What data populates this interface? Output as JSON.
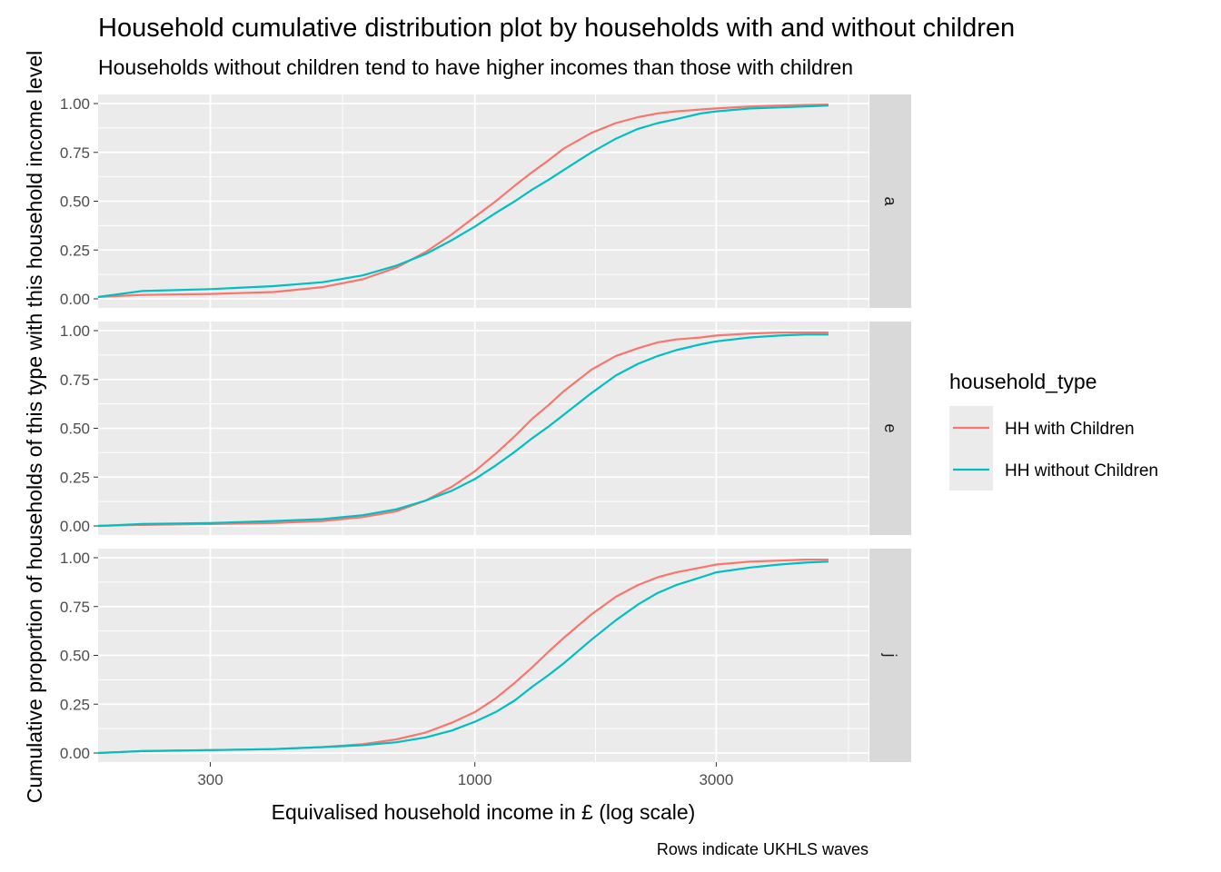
{
  "chart_data": {
    "type": "line",
    "title": "Household cumulative distribution plot by households with and without children",
    "subtitle": "Households without children tend to have higher incomes than those with children",
    "xlabel": "Equivalised household income in £ (log scale)",
    "ylabel": "Cumulative proportion of households of this type with this household income level",
    "caption": "Rows indicate UKHLS waves",
    "x_scale": "log10",
    "xlim": [
      180,
      6000
    ],
    "ylim": [
      0,
      1
    ],
    "x_ticks": [
      300,
      1000,
      3000
    ],
    "x_tick_labels": [
      "300",
      "1000",
      "3000"
    ],
    "y_ticks": [
      0,
      0.25,
      0.5,
      0.75,
      1
    ],
    "y_tick_labels": [
      "0.00",
      "0.25",
      "0.50",
      "0.75",
      "1.00"
    ],
    "grid": true,
    "legend": {
      "title": "household_type",
      "position": "right",
      "entries": [
        "HH with Children",
        "HH without Children"
      ]
    },
    "colors": {
      "HH with Children": "#F8766D",
      "HH without Children": "#00BFC4"
    },
    "x": [
      180,
      220,
      300,
      400,
      500,
      600,
      700,
      800,
      900,
      1000,
      1100,
      1200,
      1300,
      1400,
      1500,
      1700,
      1900,
      2100,
      2300,
      2500,
      2800,
      3000,
      3500,
      4000,
      4500,
      5000
    ],
    "panels": [
      {
        "label": "a",
        "series": [
          {
            "name": "HH with Children",
            "values": [
              0.01,
              0.02,
              0.025,
              0.035,
              0.06,
              0.1,
              0.16,
              0.24,
              0.33,
              0.42,
              0.5,
              0.58,
              0.65,
              0.71,
              0.77,
              0.85,
              0.9,
              0.93,
              0.95,
              0.96,
              0.97,
              0.975,
              0.985,
              0.99,
              0.993,
              0.995
            ]
          },
          {
            "name": "HH without Children",
            "values": [
              0.01,
              0.04,
              0.05,
              0.065,
              0.085,
              0.12,
              0.17,
              0.23,
              0.3,
              0.37,
              0.44,
              0.5,
              0.56,
              0.61,
              0.66,
              0.75,
              0.82,
              0.87,
              0.9,
              0.92,
              0.95,
              0.96,
              0.975,
              0.98,
              0.985,
              0.99
            ]
          }
        ]
      },
      {
        "label": "e",
        "series": [
          {
            "name": "HH with Children",
            "values": [
              0.0,
              0.005,
              0.01,
              0.015,
              0.025,
              0.045,
              0.075,
              0.13,
              0.2,
              0.28,
              0.37,
              0.46,
              0.55,
              0.62,
              0.69,
              0.8,
              0.87,
              0.91,
              0.94,
              0.955,
              0.965,
              0.975,
              0.985,
              0.99,
              0.99,
              0.99
            ]
          },
          {
            "name": "HH without Children",
            "values": [
              0.0,
              0.01,
              0.015,
              0.025,
              0.035,
              0.055,
              0.085,
              0.13,
              0.18,
              0.24,
              0.31,
              0.38,
              0.45,
              0.51,
              0.57,
              0.68,
              0.77,
              0.83,
              0.87,
              0.9,
              0.93,
              0.945,
              0.965,
              0.975,
              0.98,
              0.98
            ]
          }
        ]
      },
      {
        "label": "j",
        "series": [
          {
            "name": "HH with Children",
            "values": [
              0.0,
              0.01,
              0.015,
              0.02,
              0.03,
              0.045,
              0.07,
              0.105,
              0.155,
              0.21,
              0.28,
              0.36,
              0.44,
              0.52,
              0.59,
              0.71,
              0.8,
              0.86,
              0.9,
              0.925,
              0.95,
              0.965,
              0.98,
              0.985,
              0.99,
              0.99
            ]
          },
          {
            "name": "HH without Children",
            "values": [
              0.0,
              0.01,
              0.015,
              0.02,
              0.03,
              0.04,
              0.055,
              0.08,
              0.115,
              0.16,
              0.21,
              0.27,
              0.34,
              0.4,
              0.46,
              0.58,
              0.68,
              0.76,
              0.82,
              0.86,
              0.9,
              0.925,
              0.95,
              0.965,
              0.975,
              0.98
            ]
          }
        ]
      }
    ]
  }
}
